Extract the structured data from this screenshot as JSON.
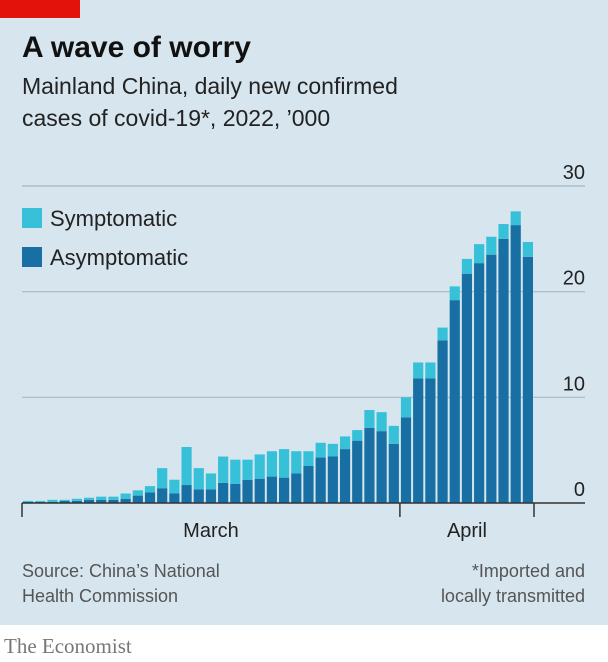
{
  "brand": "The Economist",
  "chart_data": {
    "type": "bar",
    "stacked": true,
    "title": "A wave of worry",
    "subtitle": [
      "Mainland China, daily new confirmed",
      "cases of covid-19*, 2022, ’000"
    ],
    "categories": [
      "March",
      null,
      null,
      null,
      null,
      null,
      null,
      null,
      null,
      null,
      null,
      null,
      null,
      null,
      null,
      null,
      null,
      null,
      null,
      null,
      null,
      null,
      null,
      null,
      null,
      null,
      null,
      null,
      null,
      null,
      null,
      "April",
      null,
      null,
      null,
      null,
      null,
      null,
      null,
      null,
      null,
      null
    ],
    "series": [
      {
        "name": "Symptomatic",
        "color": "#37c1d9",
        "values": [
          0.1,
          0.1,
          0.2,
          0.1,
          0.2,
          0.2,
          0.3,
          0.3,
          0.5,
          0.5,
          0.6,
          1.9,
          1.3,
          3.6,
          2.0,
          1.5,
          2.5,
          2.3,
          1.9,
          2.3,
          2.4,
          2.7,
          2.1,
          1.4,
          1.4,
          1.2,
          1.2,
          1.0,
          1.7,
          1.8,
          1.7,
          1.9,
          1.5,
          1.5,
          1.2,
          1.3,
          1.4,
          1.8,
          1.7,
          1.4,
          1.3,
          1.4
        ]
      },
      {
        "name": "Asymptomatic",
        "color": "#176fa3",
        "values": [
          0.1,
          0.1,
          0.1,
          0.2,
          0.2,
          0.3,
          0.3,
          0.3,
          0.4,
          0.7,
          1.0,
          1.4,
          0.9,
          1.7,
          1.3,
          1.3,
          1.9,
          1.8,
          2.2,
          2.3,
          2.5,
          2.4,
          2.8,
          3.5,
          4.3,
          4.4,
          5.1,
          5.9,
          7.1,
          6.8,
          5.6,
          8.1,
          11.8,
          11.8,
          15.4,
          19.2,
          21.7,
          22.7,
          23.5,
          25.0,
          26.3,
          23.3
        ]
      }
    ],
    "ylim": [
      0,
      30
    ],
    "yticks": [
      0,
      10,
      20,
      30
    ],
    "grid": true,
    "legend": "top-left",
    "source": [
      "Source: China’s National",
      "Health Commission"
    ],
    "note": [
      "*Imported and",
      "locally transmitted"
    ]
  }
}
